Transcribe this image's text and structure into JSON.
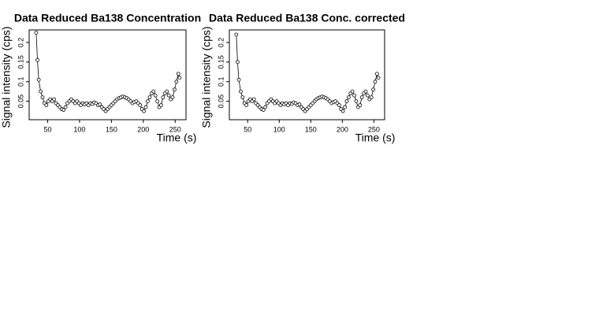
{
  "chart_data": [
    {
      "type": "line",
      "title": "Data Reduced Ba138 Concentration",
      "x_label": "Time (s)",
      "y_label": "Signal intensity (cps)",
      "x": [
        32,
        34,
        36,
        39,
        42,
        45,
        48,
        51,
        54,
        57,
        60,
        63,
        66,
        69,
        72,
        75,
        78,
        81,
        84,
        87,
        90,
        93,
        96,
        99,
        102,
        105,
        108,
        111,
        114,
        117,
        120,
        123,
        126,
        129,
        132,
        135,
        138,
        141,
        144,
        147,
        150,
        153,
        156,
        159,
        162,
        165,
        168,
        171,
        174,
        177,
        180,
        183,
        186,
        189,
        192,
        195,
        198,
        201,
        204,
        207,
        210,
        213,
        216,
        219,
        222,
        225,
        228,
        231,
        234,
        237,
        240,
        243,
        246,
        249,
        252,
        255,
        257
      ],
      "values": [
        0.225,
        0.155,
        0.105,
        0.075,
        0.06,
        0.045,
        0.04,
        0.05,
        0.055,
        0.05,
        0.055,
        0.045,
        0.04,
        0.035,
        0.03,
        0.028,
        0.035,
        0.045,
        0.05,
        0.055,
        0.05,
        0.045,
        0.05,
        0.045,
        0.04,
        0.045,
        0.042,
        0.045,
        0.04,
        0.045,
        0.043,
        0.047,
        0.045,
        0.04,
        0.042,
        0.035,
        0.03,
        0.025,
        0.03,
        0.035,
        0.04,
        0.045,
        0.05,
        0.055,
        0.058,
        0.06,
        0.062,
        0.06,
        0.058,
        0.055,
        0.05,
        0.045,
        0.048,
        0.05,
        0.045,
        0.04,
        0.03,
        0.025,
        0.035,
        0.05,
        0.06,
        0.07,
        0.075,
        0.065,
        0.05,
        0.035,
        0.04,
        0.06,
        0.07,
        0.075,
        0.065,
        0.055,
        0.06,
        0.08,
        0.1,
        0.12,
        0.11
      ],
      "xlim": [
        21,
        267
      ],
      "ylim": [
        0.003,
        0.232
      ],
      "xticks": [
        50,
        100,
        150,
        200,
        250
      ],
      "yticks": [
        0.05,
        0.1,
        0.15,
        0.2
      ]
    },
    {
      "type": "line",
      "title": "Data Reduced Ba138 Conc. corrected",
      "x_label": "Time (s)",
      "y_label": "Signal intensity (cps)",
      "x": [
        32,
        34,
        36,
        39,
        42,
        45,
        48,
        51,
        54,
        57,
        60,
        63,
        66,
        69,
        72,
        75,
        78,
        81,
        84,
        87,
        90,
        93,
        96,
        99,
        102,
        105,
        108,
        111,
        114,
        117,
        120,
        123,
        126,
        129,
        132,
        135,
        138,
        141,
        144,
        147,
        150,
        153,
        156,
        159,
        162,
        165,
        168,
        171,
        174,
        177,
        180,
        183,
        186,
        189,
        192,
        195,
        198,
        201,
        204,
        207,
        210,
        213,
        216,
        219,
        222,
        225,
        228,
        231,
        234,
        237,
        240,
        243,
        246,
        249,
        252,
        255,
        257
      ],
      "values": [
        0.22,
        0.15,
        0.105,
        0.075,
        0.06,
        0.045,
        0.04,
        0.05,
        0.055,
        0.05,
        0.055,
        0.045,
        0.04,
        0.035,
        0.03,
        0.028,
        0.035,
        0.045,
        0.05,
        0.055,
        0.05,
        0.045,
        0.05,
        0.045,
        0.04,
        0.045,
        0.042,
        0.045,
        0.04,
        0.045,
        0.043,
        0.047,
        0.045,
        0.04,
        0.042,
        0.035,
        0.03,
        0.025,
        0.03,
        0.035,
        0.04,
        0.045,
        0.05,
        0.055,
        0.058,
        0.06,
        0.062,
        0.06,
        0.058,
        0.055,
        0.05,
        0.045,
        0.048,
        0.05,
        0.045,
        0.04,
        0.03,
        0.025,
        0.035,
        0.05,
        0.06,
        0.07,
        0.075,
        0.065,
        0.05,
        0.035,
        0.04,
        0.06,
        0.07,
        0.075,
        0.065,
        0.055,
        0.06,
        0.08,
        0.1,
        0.12,
        0.11
      ],
      "xlim": [
        21,
        267
      ],
      "ylim": [
        0.003,
        0.232
      ],
      "xticks": [
        50,
        100,
        150,
        200,
        250
      ],
      "yticks": [
        0.05,
        0.1,
        0.15,
        0.2
      ]
    }
  ]
}
